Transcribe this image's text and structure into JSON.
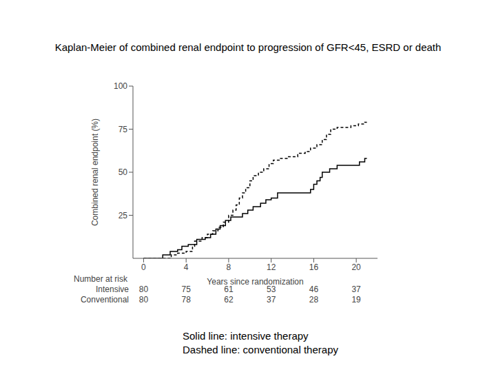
{
  "chart_data": {
    "type": "line",
    "title": "Kaplan-Meier of combined renal endpoint to progression of GFR<45, ESRD or death",
    "x_label": "Years since randomization",
    "y_label": "Combined renal endpoint (%)",
    "xlim": [
      -1,
      22
    ],
    "xticks": [
      0,
      4,
      8,
      12,
      16,
      20
    ],
    "ylim": [
      0,
      100
    ],
    "yticks": [
      25,
      50,
      75,
      100
    ],
    "grid": false,
    "at_risk_title": "Number at risk",
    "at_risk_times": [
      0,
      4,
      8,
      12,
      16,
      20
    ],
    "series": [
      {
        "name": "Intensive",
        "color": "#000000",
        "line_style": "solid",
        "x": [
          0,
          1.8,
          2.5,
          3.2,
          3.6,
          4.2,
          5,
          5.8,
          6.3,
          6.8,
          7.2,
          7.7,
          8.2,
          9.3,
          9.8,
          10.3,
          11,
          11.5,
          12,
          12.6,
          15.7,
          16,
          16.3,
          16.6,
          16.8,
          17.5,
          18.2,
          20.3,
          20.8,
          21
        ],
        "values": [
          0,
          2,
          4,
          5,
          7,
          8,
          11,
          12,
          14,
          17,
          19,
          22,
          24,
          26,
          28,
          30,
          32,
          34,
          35,
          38,
          40,
          43,
          45,
          47,
          50,
          52,
          54,
          56,
          58,
          58
        ],
        "at_risk": [
          80,
          75,
          61,
          53,
          46,
          37
        ]
      },
      {
        "name": "Conventional",
        "color": "#000000",
        "line_style": "dashed",
        "x": [
          0,
          2.6,
          3.2,
          4,
          4.6,
          4.8,
          5.5,
          6,
          6.5,
          7,
          7.5,
          8,
          8.4,
          8.7,
          9,
          9.3,
          9.6,
          10,
          10.3,
          10.8,
          11.3,
          11.8,
          12.2,
          12.8,
          13.5,
          14.5,
          15.2,
          15.7,
          16.3,
          16.8,
          17.2,
          17.6,
          18.2,
          19.5,
          20.2,
          20.8,
          21
        ],
        "values": [
          0,
          2,
          3,
          4,
          7,
          10,
          12,
          14,
          16,
          18,
          21,
          25,
          28,
          31,
          35,
          38,
          41,
          45,
          48,
          50,
          52,
          55,
          57,
          58,
          59,
          61,
          62,
          64,
          66,
          69,
          72,
          75,
          76,
          77,
          78,
          79,
          79
        ],
        "at_risk": [
          80,
          78,
          62,
          37,
          28,
          19
        ]
      }
    ],
    "notes": [
      "Solid line: intensive therapy",
      "Dashed line: conventional therapy"
    ]
  }
}
